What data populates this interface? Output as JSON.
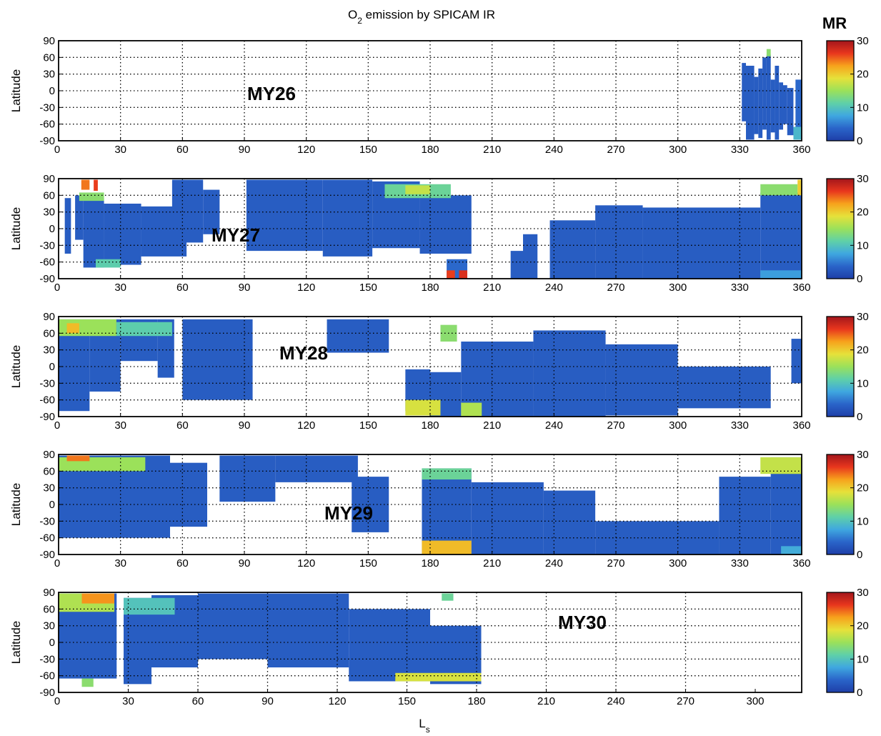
{
  "figure": {
    "title_main": "O",
    "title_sub": "2",
    "title_rest": " emission by SPICAM IR",
    "colorbar_title": "MR",
    "xlabel_main": "L",
    "xlabel_sub": "s",
    "ylabel": "Latitude",
    "colorbar_ticks": [
      "30",
      "20",
      "10",
      "0"
    ],
    "colormap": [
      "#1e3fa8",
      "#2a64c9",
      "#3fa7e0",
      "#5fd0a8",
      "#9be15a",
      "#e6e13a",
      "#f7a21c",
      "#e8361d",
      "#a3161c"
    ]
  },
  "chart_data": [
    {
      "type": "heatmap",
      "label": "MY26",
      "xlim": [
        0,
        360
      ],
      "ylim": [
        -90,
        90
      ],
      "xticks": [
        "0",
        "30",
        "60",
        "90",
        "120",
        "150",
        "180",
        "210",
        "240",
        "270",
        "300",
        "330",
        "360"
      ],
      "yticks": [
        "90",
        "60",
        "30",
        "0",
        "-30",
        "-60",
        "-90"
      ],
      "color_range": [
        0,
        30
      ],
      "regions": [
        {
          "x": [
            331,
            333
          ],
          "y": [
            -55,
            50
          ],
          "v": 3
        },
        {
          "x": [
            333,
            337
          ],
          "y": [
            -88,
            45
          ],
          "v": 3
        },
        {
          "x": [
            337,
            339
          ],
          "y": [
            -78,
            25
          ],
          "v": 3
        },
        {
          "x": [
            339,
            341
          ],
          "y": [
            -85,
            40
          ],
          "v": 3
        },
        {
          "x": [
            341,
            343
          ],
          "y": [
            -70,
            60
          ],
          "v": 3
        },
        {
          "x": [
            343,
            345
          ],
          "y": [
            -88,
            65
          ],
          "v": 3
        },
        {
          "x": [
            345,
            347
          ],
          "y": [
            -75,
            20
          ],
          "v": 3
        },
        {
          "x": [
            347,
            349
          ],
          "y": [
            -88,
            45
          ],
          "v": 3
        },
        {
          "x": [
            349,
            351
          ],
          "y": [
            -70,
            15
          ],
          "v": 3
        },
        {
          "x": [
            351,
            353
          ],
          "y": [
            -60,
            10
          ],
          "v": 3
        },
        {
          "x": [
            353,
            356
          ],
          "y": [
            -80,
            5
          ],
          "v": 3
        },
        {
          "x": [
            357,
            360
          ],
          "y": [
            -88,
            20
          ],
          "v": 4
        },
        {
          "x": [
            343,
            345
          ],
          "y": [
            62,
            75
          ],
          "v": 14
        },
        {
          "x": [
            356,
            360
          ],
          "y": [
            -88,
            -65
          ],
          "v": 9
        }
      ]
    },
    {
      "type": "heatmap",
      "label": "MY27",
      "xlim": [
        0,
        360
      ],
      "ylim": [
        -90,
        90
      ],
      "xticks": [
        "0",
        "30",
        "60",
        "90",
        "120",
        "150",
        "180",
        "210",
        "240",
        "270",
        "300",
        "330",
        "360"
      ],
      "yticks": [
        "90",
        "60",
        "30",
        "0",
        "-30",
        "-60",
        "-90"
      ],
      "color_range": [
        0,
        30
      ],
      "regions": [
        {
          "x": [
            3,
            6
          ],
          "y": [
            -45,
            55
          ],
          "v": 3
        },
        {
          "x": [
            8,
            12
          ],
          "y": [
            -20,
            60
          ],
          "v": 3
        },
        {
          "x": [
            12,
            22
          ],
          "y": [
            -70,
            55
          ],
          "v": 3
        },
        {
          "x": [
            22,
            40
          ],
          "y": [
            -65,
            45
          ],
          "v": 3
        },
        {
          "x": [
            40,
            62
          ],
          "y": [
            -50,
            40
          ],
          "v": 3
        },
        {
          "x": [
            55,
            70
          ],
          "y": [
            -25,
            88
          ],
          "v": 3
        },
        {
          "x": [
            70,
            78
          ],
          "y": [
            -10,
            70
          ],
          "v": 3
        },
        {
          "x": [
            91,
            128
          ],
          "y": [
            -40,
            88
          ],
          "v": 3
        },
        {
          "x": [
            128,
            152
          ],
          "y": [
            -50,
            88
          ],
          "v": 3
        },
        {
          "x": [
            152,
            175
          ],
          "y": [
            -35,
            85
          ],
          "v": 3
        },
        {
          "x": [
            175,
            200
          ],
          "y": [
            -45,
            60
          ],
          "v": 3
        },
        {
          "x": [
            188,
            198
          ],
          "y": [
            -90,
            -55
          ],
          "v": 4
        },
        {
          "x": [
            219,
            226
          ],
          "y": [
            -90,
            -40
          ],
          "v": 3
        },
        {
          "x": [
            225,
            232
          ],
          "y": [
            -90,
            -10
          ],
          "v": 3
        },
        {
          "x": [
            238,
            260
          ],
          "y": [
            -90,
            15
          ],
          "v": 3
        },
        {
          "x": [
            260,
            283
          ],
          "y": [
            -90,
            42
          ],
          "v": 3
        },
        {
          "x": [
            283,
            340
          ],
          "y": [
            -90,
            38
          ],
          "v": 3
        },
        {
          "x": [
            340,
            360
          ],
          "y": [
            -90,
            65
          ],
          "v": 3
        },
        {
          "x": [
            10,
            22
          ],
          "y": [
            50,
            65
          ],
          "v": 14
        },
        {
          "x": [
            11,
            15
          ],
          "y": [
            70,
            88
          ],
          "v": 24
        },
        {
          "x": [
            17,
            19
          ],
          "y": [
            68,
            88
          ],
          "v": 26
        },
        {
          "x": [
            18,
            30
          ],
          "y": [
            -70,
            -55
          ],
          "v": 11
        },
        {
          "x": [
            158,
            190
          ],
          "y": [
            55,
            80
          ],
          "v": 12
        },
        {
          "x": [
            168,
            180
          ],
          "y": [
            62,
            78
          ],
          "v": 17
        },
        {
          "x": [
            188,
            192
          ],
          "y": [
            -90,
            -75
          ],
          "v": 26
        },
        {
          "x": [
            194,
            198
          ],
          "y": [
            -90,
            -75
          ],
          "v": 27
        },
        {
          "x": [
            340,
            358
          ],
          "y": [
            60,
            80
          ],
          "v": 14
        },
        {
          "x": [
            358,
            360
          ],
          "y": [
            60,
            88
          ],
          "v": 20
        },
        {
          "x": [
            340,
            360
          ],
          "y": [
            -90,
            -75
          ],
          "v": 7
        }
      ]
    },
    {
      "type": "heatmap",
      "label": "MY28",
      "xlim": [
        0,
        360
      ],
      "ylim": [
        -90,
        90
      ],
      "xticks": [
        "0",
        "30",
        "60",
        "90",
        "120",
        "150",
        "180",
        "210",
        "240",
        "270",
        "300",
        "330",
        "360"
      ],
      "yticks": [
        "90",
        "60",
        "30",
        "0",
        "-30",
        "-60",
        "-90"
      ],
      "color_range": [
        0,
        30
      ],
      "regions": [
        {
          "x": [
            0,
            15
          ],
          "y": [
            -80,
            85
          ],
          "v": 3
        },
        {
          "x": [
            15,
            30
          ],
          "y": [
            -45,
            85
          ],
          "v": 3
        },
        {
          "x": [
            30,
            48
          ],
          "y": [
            10,
            85
          ],
          "v": 3
        },
        {
          "x": [
            48,
            56
          ],
          "y": [
            -20,
            85
          ],
          "v": 3
        },
        {
          "x": [
            60,
            94
          ],
          "y": [
            -60,
            85
          ],
          "v": 3
        },
        {
          "x": [
            130,
            160
          ],
          "y": [
            25,
            85
          ],
          "v": 3
        },
        {
          "x": [
            168,
            180
          ],
          "y": [
            -80,
            -5
          ],
          "v": 3
        },
        {
          "x": [
            180,
            195
          ],
          "y": [
            -90,
            -10
          ],
          "v": 3
        },
        {
          "x": [
            195,
            230
          ],
          "y": [
            -90,
            45
          ],
          "v": 3
        },
        {
          "x": [
            230,
            265
          ],
          "y": [
            -90,
            65
          ],
          "v": 3
        },
        {
          "x": [
            265,
            300
          ],
          "y": [
            -88,
            40
          ],
          "v": 3
        },
        {
          "x": [
            300,
            345
          ],
          "y": [
            -75,
            0
          ],
          "v": 3
        },
        {
          "x": [
            355,
            360
          ],
          "y": [
            -30,
            50
          ],
          "v": 3
        },
        {
          "x": [
            0,
            28
          ],
          "y": [
            55,
            85
          ],
          "v": 15
        },
        {
          "x": [
            4,
            10
          ],
          "y": [
            60,
            78
          ],
          "v": 21
        },
        {
          "x": [
            28,
            55
          ],
          "y": [
            55,
            80
          ],
          "v": 11
        },
        {
          "x": [
            168,
            185
          ],
          "y": [
            -88,
            -60
          ],
          "v": 18
        },
        {
          "x": [
            195,
            205
          ],
          "y": [
            -90,
            -65
          ],
          "v": 16
        },
        {
          "x": [
            185,
            193
          ],
          "y": [
            45,
            75
          ],
          "v": 14
        }
      ]
    },
    {
      "type": "heatmap",
      "label": "MY29",
      "xlim": [
        0,
        360
      ],
      "ylim": [
        -90,
        90
      ],
      "xticks": [
        "0",
        "30",
        "60",
        "90",
        "120",
        "150",
        "180",
        "210",
        "240",
        "270",
        "300",
        "330",
        "360"
      ],
      "yticks": [
        "90",
        "60",
        "30",
        "0",
        "-30",
        "-60",
        "-90"
      ],
      "color_range": [
        0,
        30
      ],
      "regions": [
        {
          "x": [
            0,
            54
          ],
          "y": [
            -60,
            88
          ],
          "v": 3
        },
        {
          "x": [
            54,
            72
          ],
          "y": [
            -40,
            75
          ],
          "v": 3
        },
        {
          "x": [
            78,
            105
          ],
          "y": [
            5,
            88
          ],
          "v": 3
        },
        {
          "x": [
            105,
            145
          ],
          "y": [
            40,
            88
          ],
          "v": 3
        },
        {
          "x": [
            142,
            160
          ],
          "y": [
            -50,
            50
          ],
          "v": 3
        },
        {
          "x": [
            176,
            200
          ],
          "y": [
            -90,
            65
          ],
          "v": 3
        },
        {
          "x": [
            200,
            235
          ],
          "y": [
            -90,
            40
          ],
          "v": 3
        },
        {
          "x": [
            235,
            260
          ],
          "y": [
            -90,
            25
          ],
          "v": 3
        },
        {
          "x": [
            260,
            320
          ],
          "y": [
            -90,
            -30
          ],
          "v": 3
        },
        {
          "x": [
            320,
            345
          ],
          "y": [
            -90,
            50
          ],
          "v": 3
        },
        {
          "x": [
            345,
            360
          ],
          "y": [
            -90,
            85
          ],
          "v": 3
        },
        {
          "x": [
            0,
            42
          ],
          "y": [
            60,
            85
          ],
          "v": 15
        },
        {
          "x": [
            4,
            15
          ],
          "y": [
            78,
            88
          ],
          "v": 24
        },
        {
          "x": [
            176,
            200
          ],
          "y": [
            -90,
            -65
          ],
          "v": 21
        },
        {
          "x": [
            176,
            200
          ],
          "y": [
            45,
            65
          ],
          "v": 12
        },
        {
          "x": [
            340,
            360
          ],
          "y": [
            55,
            85
          ],
          "v": 17
        },
        {
          "x": [
            350,
            360
          ],
          "y": [
            -90,
            -75
          ],
          "v": 8
        }
      ]
    },
    {
      "type": "heatmap",
      "label": "MY30",
      "xlim": [
        0,
        320
      ],
      "ylim": [
        -90,
        90
      ],
      "xticks": [
        "0",
        "30",
        "60",
        "90",
        "120",
        "150",
        "180",
        "210",
        "240",
        "270",
        "300"
      ],
      "yticks": [
        "90",
        "60",
        "30",
        "0",
        "-30",
        "-60",
        "-90"
      ],
      "color_range": [
        0,
        30
      ],
      "regions": [
        {
          "x": [
            0,
            25
          ],
          "y": [
            -65,
            88
          ],
          "v": 3
        },
        {
          "x": [
            28,
            40
          ],
          "y": [
            -75,
            80
          ],
          "v": 3
        },
        {
          "x": [
            40,
            60
          ],
          "y": [
            -45,
            85
          ],
          "v": 3
        },
        {
          "x": [
            60,
            90
          ],
          "y": [
            -30,
            88
          ],
          "v": 3
        },
        {
          "x": [
            90,
            125
          ],
          "y": [
            -45,
            88
          ],
          "v": 3
        },
        {
          "x": [
            125,
            160
          ],
          "y": [
            -70,
            60
          ],
          "v": 3
        },
        {
          "x": [
            160,
            182
          ],
          "y": [
            -75,
            30
          ],
          "v": 3
        },
        {
          "x": [
            0,
            24
          ],
          "y": [
            55,
            88
          ],
          "v": 16
        },
        {
          "x": [
            10,
            24
          ],
          "y": [
            70,
            88
          ],
          "v": 23
        },
        {
          "x": [
            28,
            50
          ],
          "y": [
            50,
            80
          ],
          "v": 10
        },
        {
          "x": [
            145,
            182
          ],
          "y": [
            -70,
            -55
          ],
          "v": 18
        },
        {
          "x": [
            165,
            170
          ],
          "y": [
            75,
            88
          ],
          "v": 12
        },
        {
          "x": [
            10,
            15
          ],
          "y": [
            -80,
            -65
          ],
          "v": 14
        }
      ]
    }
  ]
}
